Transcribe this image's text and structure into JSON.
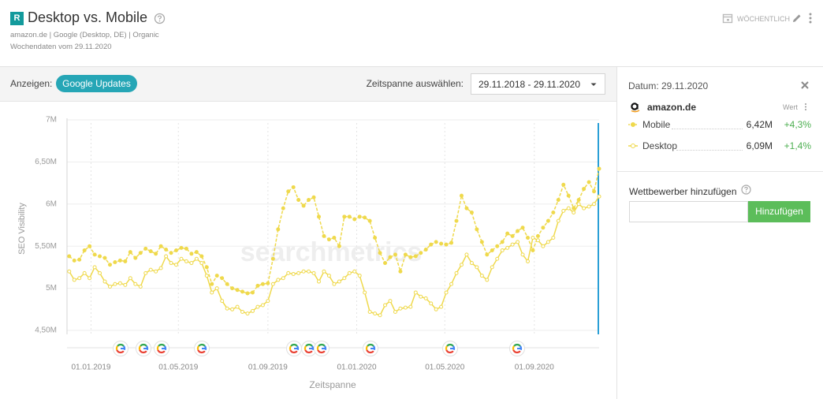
{
  "header": {
    "badge": "R",
    "title": "Desktop vs. Mobile",
    "subtitle": "amazon.de | Google (Desktop, DE) | Organic",
    "note": "Wochendaten vom 29.11.2020",
    "interval": "WÖCHENTLICH"
  },
  "toolbar": {
    "show_label": "Anzeigen:",
    "updates_button": "Google Updates",
    "range_label": "Zeitspanne auswählen:",
    "range_value": "29.11.2018 - 29.11.2020"
  },
  "sidebar": {
    "date": "Datum: 29.11.2020",
    "domain": "amazon.de",
    "value_header": "Wert",
    "rows": [
      {
        "value": "6,42M",
        "change": "+4,3%"
      },
      {
        "value": "6,09M",
        "change": "+1,4%"
      }
    ],
    "competitor_label": "Wettbewerber hinzufügen",
    "add_button": "Hinzufügen"
  },
  "chart_data": {
    "type": "line",
    "ylabel": "SEO Visibility",
    "xlabel": "Zeitspanne",
    "watermark": "searchmetrics",
    "ylim": [
      4.5,
      7
    ],
    "yticks": [
      {
        "value": 4.5,
        "label": "4,50M"
      },
      {
        "value": 5,
        "label": "5M"
      },
      {
        "value": 5.5,
        "label": "5,50M"
      },
      {
        "value": 6,
        "label": "6M"
      },
      {
        "value": 6.5,
        "label": "6,50M"
      },
      {
        "value": 7,
        "label": "7M"
      }
    ],
    "xlim": [
      "29.11.2018",
      "29.11.2020"
    ],
    "xticks": [
      "01.01.2019",
      "01.05.2019",
      "01.09.2019",
      "01.01.2020",
      "01.05.2020",
      "01.09.2020"
    ],
    "grid": true,
    "x": [
      "02.12.2018",
      "09.12.2018",
      "16.12.2018",
      "23.12.2018",
      "30.12.2018",
      "06.01.2019",
      "13.01.2019",
      "20.01.2019",
      "27.01.2019",
      "03.02.2019",
      "10.02.2019",
      "17.02.2019",
      "24.02.2019",
      "03.03.2019",
      "10.03.2019",
      "17.03.2019",
      "24.03.2019",
      "31.03.2019",
      "07.04.2019",
      "14.04.2019",
      "21.04.2019",
      "28.04.2019",
      "05.05.2019",
      "12.05.2019",
      "19.05.2019",
      "26.05.2019",
      "02.06.2019",
      "09.06.2019",
      "16.06.2019",
      "23.06.2019",
      "30.06.2019",
      "07.07.2019",
      "14.07.2019",
      "21.07.2019",
      "28.07.2019",
      "04.08.2019",
      "11.08.2019",
      "18.08.2019",
      "25.08.2019",
      "01.09.2019",
      "08.09.2019",
      "15.09.2019",
      "22.09.2019",
      "29.09.2019",
      "06.10.2019",
      "13.10.2019",
      "20.10.2019",
      "27.10.2019",
      "03.11.2019",
      "10.11.2019",
      "17.11.2019",
      "24.11.2019",
      "01.12.2019",
      "08.12.2019",
      "15.12.2019",
      "22.12.2019",
      "29.12.2019",
      "05.01.2020",
      "12.01.2020",
      "19.01.2020",
      "26.01.2020",
      "02.02.2020",
      "09.02.2020",
      "16.02.2020",
      "23.02.2020",
      "01.03.2020",
      "08.03.2020",
      "15.03.2020",
      "22.03.2020",
      "29.03.2020",
      "05.04.2020",
      "12.04.2020",
      "19.04.2020",
      "26.04.2020",
      "03.05.2020",
      "10.05.2020",
      "17.05.2020",
      "24.05.2020",
      "31.05.2020",
      "07.06.2020",
      "14.06.2020",
      "21.06.2020",
      "28.06.2020",
      "05.07.2020",
      "12.07.2020",
      "19.07.2020",
      "26.07.2020",
      "02.08.2020",
      "09.08.2020",
      "16.08.2020",
      "23.08.2020",
      "30.08.2020",
      "06.09.2020",
      "13.09.2020",
      "20.09.2020",
      "27.09.2020",
      "04.10.2020",
      "11.10.2020",
      "18.10.2020",
      "25.10.2020",
      "01.11.2020",
      "08.11.2020",
      "15.11.2020",
      "22.11.2020",
      "29.11.2020"
    ],
    "series": [
      {
        "name": "Mobile",
        "color": "#efd94c",
        "dashed": true,
        "values": [
          5.38,
          5.33,
          5.34,
          5.45,
          5.5,
          5.4,
          5.38,
          5.36,
          5.28,
          5.31,
          5.33,
          5.32,
          5.43,
          5.36,
          5.42,
          5.47,
          5.44,
          5.41,
          5.5,
          5.46,
          5.42,
          5.45,
          5.48,
          5.47,
          5.41,
          5.43,
          5.38,
          5.25,
          5.05,
          5.15,
          5.12,
          5.05,
          5.0,
          4.98,
          4.96,
          4.94,
          4.95,
          5.03,
          5.05,
          5.06,
          5.35,
          5.7,
          5.95,
          6.15,
          6.2,
          6.05,
          5.98,
          6.05,
          6.08,
          5.85,
          5.62,
          5.58,
          5.6,
          5.5,
          5.85,
          5.85,
          5.82,
          5.85,
          5.84,
          5.8,
          5.6,
          5.42,
          5.3,
          5.37,
          5.4,
          5.2,
          5.4,
          5.37,
          5.38,
          5.42,
          5.46,
          5.52,
          5.55,
          5.53,
          5.52,
          5.54,
          5.8,
          6.1,
          5.95,
          5.9,
          5.7,
          5.55,
          5.4,
          5.45,
          5.5,
          5.55,
          5.65,
          5.62,
          5.68,
          5.72,
          5.6,
          5.45,
          5.62,
          5.72,
          5.8,
          5.9,
          6.05,
          6.23,
          6.1,
          5.95,
          6.05,
          6.18,
          6.26,
          6.15,
          6.42
        ]
      },
      {
        "name": "Desktop",
        "color": "#efd94c",
        "dashed": false,
        "values": [
          5.2,
          5.1,
          5.12,
          5.18,
          5.12,
          5.25,
          5.18,
          5.08,
          5.02,
          5.05,
          5.06,
          5.04,
          5.12,
          5.05,
          5.02,
          5.18,
          5.22,
          5.2,
          5.24,
          5.38,
          5.3,
          5.28,
          5.35,
          5.32,
          5.3,
          5.35,
          5.3,
          5.15,
          4.95,
          5.0,
          4.85,
          4.76,
          4.75,
          4.78,
          4.72,
          4.7,
          4.73,
          4.78,
          4.8,
          4.85,
          5.05,
          5.1,
          5.12,
          5.18,
          5.17,
          5.18,
          5.2,
          5.2,
          5.18,
          5.08,
          5.2,
          5.15,
          5.05,
          5.08,
          5.12,
          5.18,
          5.2,
          5.15,
          4.95,
          4.72,
          4.7,
          4.68,
          4.8,
          4.85,
          4.72,
          4.76,
          4.77,
          4.78,
          4.95,
          4.9,
          4.88,
          4.82,
          4.75,
          4.78,
          4.95,
          5.05,
          5.18,
          5.28,
          5.4,
          5.3,
          5.25,
          5.15,
          5.1,
          5.25,
          5.35,
          5.45,
          5.48,
          5.52,
          5.55,
          5.4,
          5.32,
          5.6,
          5.57,
          5.5,
          5.55,
          5.6,
          5.8,
          5.92,
          5.95,
          5.9,
          6.0,
          5.95,
          5.97,
          6.0,
          6.09
        ]
      }
    ]
  }
}
